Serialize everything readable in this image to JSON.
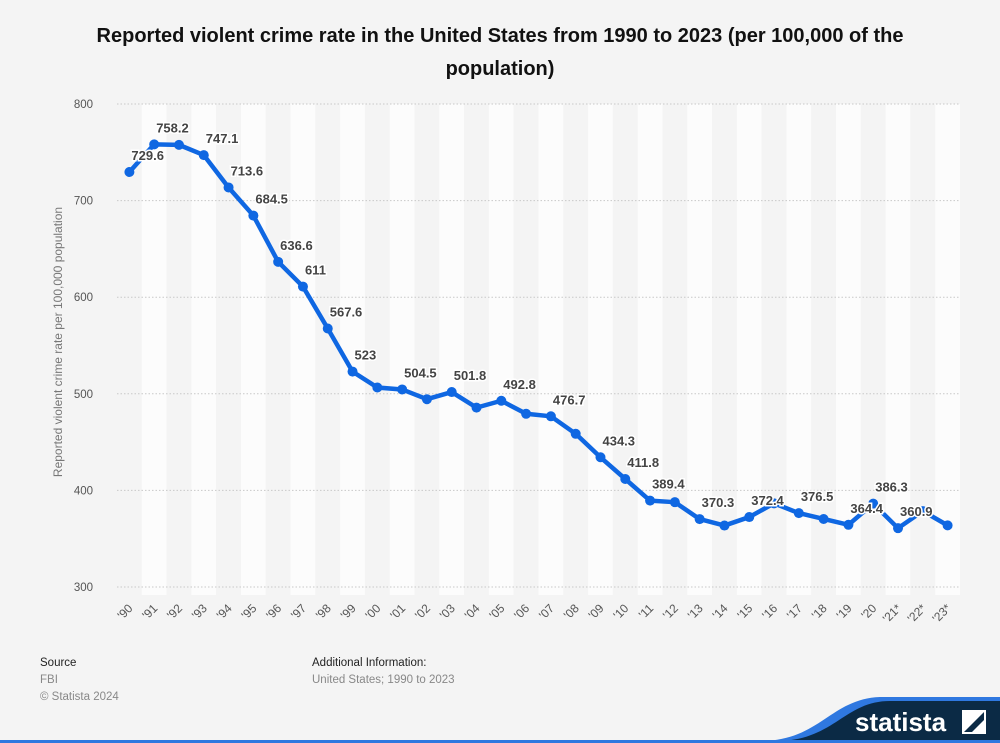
{
  "chart_data": {
    "type": "line",
    "title": "Reported violent crime rate in the United States from 1990 to 2023 (per 100,000 of the population)",
    "xlabel": "",
    "ylabel": "Reported violent crime rate per 100,000 population",
    "ylim": [
      300,
      800
    ],
    "yticks": [
      "300",
      "400",
      "500",
      "600",
      "700",
      "800"
    ],
    "grid": true,
    "categories": [
      "'90",
      "'91",
      "'92",
      "'93",
      "'94",
      "'95",
      "'96",
      "'97",
      "'98",
      "'99",
      "'00",
      "'01",
      "'02",
      "'03",
      "'04",
      "'05",
      "'06",
      "'07",
      "'08",
      "'09",
      "'10",
      "'11",
      "'12",
      "'13",
      "'14",
      "'15",
      "'16",
      "'17",
      "'18",
      "'19",
      "'20",
      "'21*",
      "'22*",
      "'23*"
    ],
    "series": [
      {
        "name": "Violent crime rate",
        "color": "#0f67e2",
        "values": [
          729.6,
          758.2,
          757.7,
          747.1,
          713.6,
          684.5,
          636.6,
          611.0,
          567.6,
          523.0,
          506.5,
          504.5,
          494.4,
          501.8,
          485.7,
          492.8,
          479.3,
          476.7,
          458.6,
          434.3,
          411.8,
          389.4,
          387.8,
          370.3,
          363.6,
          372.4,
          386.6,
          376.5,
          370.4,
          364.4,
          386.3,
          360.9,
          378.6,
          363.8
        ],
        "labels": [
          "729.6",
          "758.2",
          null,
          "747.1",
          "713.6",
          "684.5",
          "636.6",
          "611",
          "567.6",
          "523",
          null,
          "504.5",
          null,
          "501.8",
          null,
          "492.8",
          null,
          "476.7",
          null,
          "434.3",
          "411.8",
          "389.4",
          null,
          "370.3",
          null,
          "372.4",
          null,
          "376.5",
          null,
          "364.4",
          "386.3",
          "360.9",
          null,
          null
        ]
      }
    ]
  },
  "footer": {
    "source_heading": "Source",
    "source_value": "FBI",
    "copyright": "© Statista 2024",
    "additional_heading": "Additional Information:",
    "additional_value": "United States; 1990 to 2023"
  },
  "brand": {
    "logo_text": "statista",
    "navy": "#0b2a45",
    "blue": "#2f78e0"
  }
}
